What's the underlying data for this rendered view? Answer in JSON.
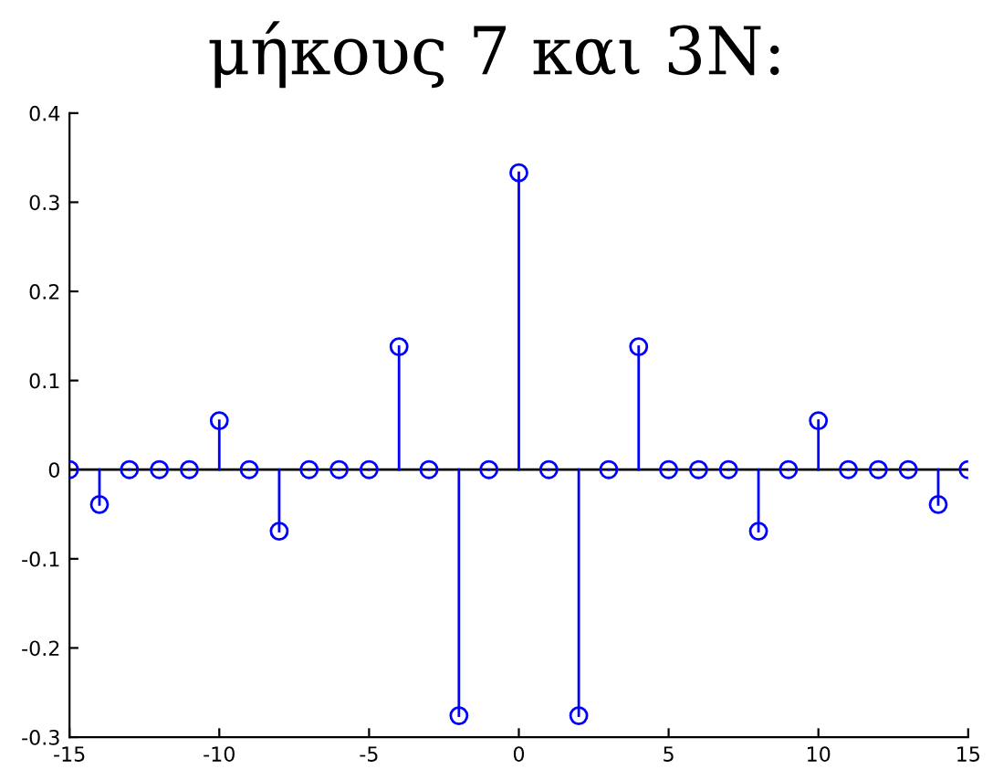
{
  "chart_data": {
    "type": "lollipop",
    "title": "μήκους 7 και 3Ν:",
    "x": [
      -15,
      -14,
      -13,
      -12,
      -11,
      -10,
      -9,
      -8,
      -7,
      -6,
      -5,
      -4,
      -3,
      -2,
      -1,
      0,
      1,
      2,
      3,
      4,
      5,
      6,
      7,
      8,
      9,
      10,
      11,
      12,
      13,
      14,
      15
    ],
    "series": [
      {
        "color": "#0000ff",
        "values": [
          0,
          -0.039,
          0,
          0,
          0,
          0.055,
          0,
          -0.069,
          0,
          0,
          0,
          0.138,
          0,
          -0.276,
          0,
          0.333,
          0,
          -0.276,
          0,
          0.138,
          0,
          0,
          0,
          -0.069,
          0,
          0.055,
          0,
          0,
          0,
          -0.039,
          0
        ]
      }
    ],
    "xlim": [
      -15,
      15
    ],
    "xticks": [
      -15,
      -10,
      -5,
      0,
      5,
      10,
      15
    ],
    "ylim": [
      -0.3,
      0.4
    ],
    "yticks": [
      -0.3,
      -0.2,
      -0.1,
      0,
      0.1,
      0.2,
      0.3,
      0.4
    ],
    "marker": "circle",
    "ref_lines": [
      {
        "axis": "y",
        "value": 0,
        "color": "#000000"
      }
    ]
  }
}
